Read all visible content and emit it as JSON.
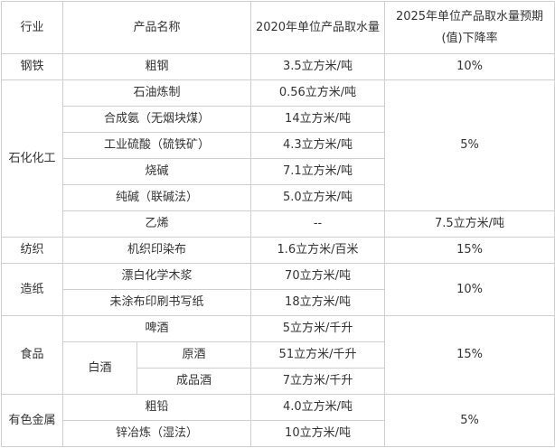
{
  "headers": {
    "industry": "行业",
    "product": "产品名称",
    "value2020": "2020年单位产品取水量",
    "target2025": "2025年单位产品取水量预期(值)下降率"
  },
  "rows": {
    "steel": {
      "industry": "钢铁",
      "product": "粗钢",
      "value": "3.5立方米/吨",
      "target": "10%"
    },
    "petro": {
      "industry": "石化化工",
      "target": "5%",
      "items": [
        {
          "product": "石油炼制",
          "value": "0.56立方米/吨"
        },
        {
          "product": "合成氨（无烟块煤）",
          "value": "14立方米/吨"
        },
        {
          "product": "工业硫酸（硫铁矿）",
          "value": "4.3立方米/吨"
        },
        {
          "product": "烧碱",
          "value": "7.1立方米/吨"
        },
        {
          "product": "纯碱（联碱法）",
          "value": "5.0立方米/吨"
        },
        {
          "product": "乙烯",
          "value": "--",
          "target": "7.5立方米/吨"
        }
      ]
    },
    "textile": {
      "industry": "纺织",
      "product": "机织印染布",
      "value": "1.6立方米/百米",
      "target": "15%"
    },
    "paper": {
      "industry": "造纸",
      "target": "10%",
      "items": [
        {
          "product": "漂白化学木浆",
          "value": "70立方米/吨"
        },
        {
          "product": "未涂布印刷书写纸",
          "value": "18立方米/吨"
        }
      ]
    },
    "food": {
      "industry": "食品",
      "target": "15%",
      "beer": {
        "product": "啤酒",
        "value": "5立方米/千升"
      },
      "liquor": {
        "label": "白酒",
        "items": [
          {
            "product": "原酒",
            "value": "51立方米/千升"
          },
          {
            "product": "成品酒",
            "value": "7立方米/千升"
          }
        ]
      }
    },
    "metal": {
      "industry": "有色金属",
      "target": "5%",
      "items": [
        {
          "product": "粗铅",
          "value": "4.0立方米/吨"
        },
        {
          "product": "锌冶炼（湿法）",
          "value": "10立方米/吨"
        }
      ]
    }
  }
}
